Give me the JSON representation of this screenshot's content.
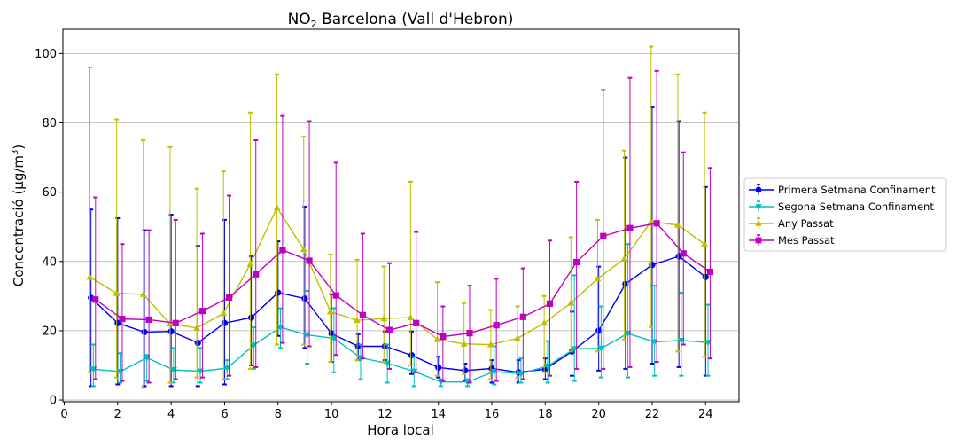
{
  "chart_data": {
    "type": "line",
    "title_main": "NO",
    "title_sub": "2",
    "title_rest": " Barcelona (Vall d'Hebron)",
    "xlabel": "Hora local",
    "ylabel_main": "Concentració (µg/m",
    "ylabel_sup": "3",
    "ylabel_end": ")",
    "xlim": [
      -0.05,
      25.25
    ],
    "ylim": [
      -0.5,
      107
    ],
    "xticks": [
      0,
      2,
      4,
      6,
      8,
      10,
      12,
      14,
      16,
      18,
      20,
      22,
      24
    ],
    "yticks": [
      0,
      20,
      40,
      60,
      80,
      100
    ],
    "grid": "horizontal",
    "legend_position": "right",
    "x": [
      1,
      2,
      3,
      4,
      5,
      6,
      7,
      8,
      9,
      10,
      11,
      12,
      13,
      14,
      15,
      16,
      17,
      18,
      19,
      20,
      21,
      22,
      23,
      24
    ],
    "series": [
      {
        "name": "Primera Setmana Confinament",
        "color": "#0000ee",
        "marker": "circle",
        "offset": 0.0,
        "values": [
          29.5,
          22.2,
          19.6,
          19.8,
          16.5,
          22.2,
          23.8,
          31.0,
          29.3,
          19.2,
          15.5,
          15.5,
          12.9,
          9.4,
          8.5,
          9.1,
          8.0,
          8.9,
          14.0,
          20.0,
          33.5,
          39.0,
          41.5,
          35.5
        ],
        "err_low": [
          4,
          4.5,
          4,
          4,
          4,
          4.5,
          10,
          18.5,
          15,
          11,
          11.5,
          11.5,
          7.5,
          6.5,
          5.5,
          5,
          5,
          6,
          7,
          8.5,
          9,
          10.5,
          9.5,
          7
        ],
        "err_high": [
          55,
          52.5,
          49,
          53.5,
          44.5,
          52,
          41.5,
          45.8,
          55.8,
          30.5,
          19,
          19.8,
          19.8,
          12.5,
          10.5,
          11.5,
          11.5,
          12,
          25.5,
          38.5,
          70,
          84.5,
          80.5,
          61.5
        ]
      },
      {
        "name": "Segona Setmana Confinament",
        "color": "#00bfbf",
        "marker": "triangle-down",
        "offset": 0.09,
        "values": [
          8.9,
          8.2,
          12.2,
          8.7,
          8.3,
          9.2,
          15.8,
          21.0,
          18.8,
          17.8,
          12.2,
          10.6,
          8.3,
          5.2,
          5.2,
          8.2,
          7.6,
          9.8,
          14.8,
          14.9,
          19.2,
          16.8,
          17.2,
          16.6
        ],
        "err_low": [
          4,
          5,
          5.5,
          5,
          5,
          6,
          9,
          15,
          10.5,
          8,
          6,
          5,
          4,
          4,
          4,
          4.5,
          5,
          5,
          5.5,
          6.5,
          6.5,
          7,
          7,
          7
        ],
        "err_high": [
          16,
          13.5,
          13,
          15,
          15,
          11.5,
          21,
          26.5,
          31.5,
          26.5,
          16,
          16,
          12.5,
          6,
          6,
          15.5,
          12,
          17,
          36,
          27,
          45,
          33,
          31,
          27.5
        ]
      },
      {
        "name": "Any Passat",
        "color": "#bfbf00",
        "marker": "triangle-up",
        "offset": -0.04,
        "values": [
          35.5,
          30.8,
          30.5,
          22.0,
          20.8,
          25.0,
          39.2,
          55.5,
          43.5,
          25.5,
          23.0,
          23.5,
          23.8,
          17.5,
          16.2,
          16.0,
          17.8,
          22.2,
          28.0,
          35.0,
          40.8,
          51.5,
          50.5,
          45.0
        ],
        "err_low": [
          8,
          6.5,
          3.5,
          5,
          6.5,
          6,
          9,
          16,
          16,
          11,
          11.5,
          11,
          10,
          7,
          7.5,
          6,
          6.5,
          8,
          14,
          14,
          17.5,
          21,
          14,
          12.5
        ],
        "err_high": [
          96,
          81,
          75,
          73,
          61,
          66,
          83,
          94,
          76,
          42,
          40.5,
          38.5,
          63,
          34,
          28,
          26,
          27,
          30,
          47,
          52,
          72,
          102,
          94,
          83
        ]
      },
      {
        "name": "Mes Passat",
        "color": "#bf00bf",
        "marker": "square",
        "offset": 0.17,
        "values": [
          29.0,
          23.4,
          23.2,
          22.2,
          25.7,
          29.6,
          36.3,
          43.3,
          40.2,
          30.2,
          24.5,
          20.2,
          22.2,
          18.3,
          19.3,
          21.6,
          24.0,
          27.8,
          39.8,
          47.3,
          49.6,
          51.0,
          42.3,
          37.0
        ],
        "err_low": [
          6,
          5.5,
          5,
          6,
          6.5,
          7,
          9.5,
          16.5,
          15.5,
          13,
          12,
          9,
          8,
          5.5,
          5,
          5.5,
          6,
          7,
          9,
          9,
          9.5,
          11,
          16,
          12
        ],
        "err_high": [
          58.5,
          45,
          49,
          52,
          48,
          59,
          75,
          82,
          80.5,
          68.5,
          48,
          39.5,
          48.5,
          27,
          33,
          35,
          38,
          46,
          63,
          89.5,
          93,
          95,
          71.5,
          67
        ]
      }
    ]
  }
}
